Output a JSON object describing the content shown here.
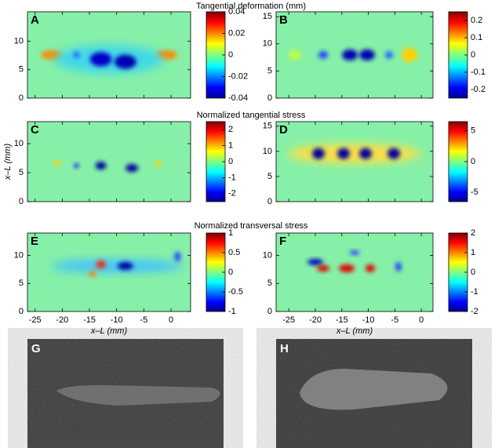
{
  "row_titles": [
    "Tangential deformation (mm)",
    "Normalized tangential stress",
    "Normalized transversal stress"
  ],
  "panels": [
    {
      "label": "A",
      "xlim": [
        -26.4,
        3.6
      ],
      "ylim": [
        0,
        15.2
      ],
      "xticks": [
        -25,
        -20,
        -15,
        -10,
        -5,
        0
      ],
      "yticks": [
        0,
        5,
        10
      ],
      "colorbar": {
        "lim": [
          -0.04,
          0.04
        ],
        "ticks": [
          0.04,
          0.02,
          0,
          -0.02,
          -0.04
        ]
      }
    },
    {
      "label": "B",
      "xlim": [
        -27.4,
        2.2
      ],
      "ylim": [
        0,
        15.9
      ],
      "xticks": [
        -25,
        -20,
        -15,
        -10,
        -5,
        0
      ],
      "yticks": [
        0,
        5,
        10,
        15
      ],
      "colorbar": {
        "lim": [
          -0.25,
          0.25
        ],
        "ticks": [
          0.2,
          0.1,
          0,
          -0.1,
          -0.2
        ]
      }
    },
    {
      "label": "C",
      "xlim": [
        -26.4,
        3.6
      ],
      "ylim": [
        0,
        13.8
      ],
      "xticks": [
        -25,
        -20,
        -15,
        -10,
        -5,
        0
      ],
      "yticks": [
        0,
        5,
        10
      ],
      "y_label": "x–L (mm)",
      "colorbar": {
        "lim": [
          -2.5,
          2.5
        ],
        "ticks": [
          2,
          1,
          0,
          -1,
          -2
        ]
      }
    },
    {
      "label": "D",
      "xlim": [
        -27.4,
        2.2
      ],
      "ylim": [
        0,
        15.9
      ],
      "xticks": [
        -25,
        -20,
        -15,
        -10,
        -5,
        0
      ],
      "yticks": [
        0,
        5,
        10,
        15
      ],
      "colorbar": {
        "lim": [
          -6.5,
          6.5
        ],
        "ticks": [
          5,
          0,
          -5
        ]
      }
    },
    {
      "label": "E",
      "xlim": [
        -26.4,
        3.6
      ],
      "ylim": [
        0,
        14
      ],
      "xticks": [
        -25,
        -20,
        -15,
        -10,
        -5,
        0
      ],
      "yticks": [
        0,
        5,
        10
      ],
      "x_label": "x–L (mm)",
      "colorbar": {
        "lim": [
          -1,
          1
        ],
        "ticks": [
          1,
          0.5,
          0,
          -0.5,
          -1
        ]
      }
    },
    {
      "label": "F",
      "xlim": [
        -27.4,
        2.2
      ],
      "ylim": [
        0,
        14
      ],
      "xticks": [
        -25,
        -20,
        -15,
        -10,
        -5,
        0
      ],
      "yticks": [
        0,
        5,
        10
      ],
      "x_label": "x–L (mm)",
      "colorbar": {
        "lim": [
          -2,
          2
        ],
        "ticks": [
          2,
          1,
          0,
          -1,
          -2
        ]
      }
    }
  ],
  "photos": [
    {
      "label": "G"
    },
    {
      "label": "H"
    }
  ]
}
